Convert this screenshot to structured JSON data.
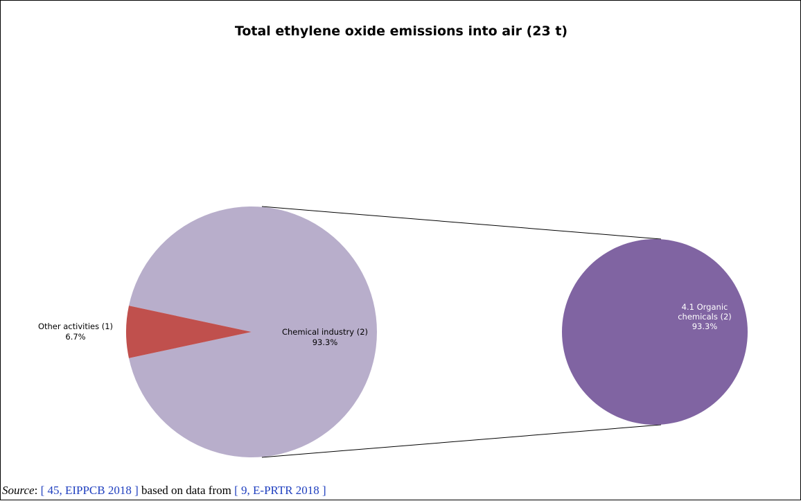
{
  "chart_data": {
    "type": "pie",
    "title": "Total ethylene oxide emissions into air (23 t)",
    "main_pie": {
      "slices": [
        {
          "label": "Other activities (1)",
          "value": 6.7,
          "display": "6.7%",
          "color": "#c0504d"
        },
        {
          "label": "Chemical industry (2)",
          "value": 93.3,
          "display": "93.3%",
          "color": "#b8aecb"
        }
      ]
    },
    "secondary_pie": {
      "slices": [
        {
          "label": "4.1  Organic chemicals (2)",
          "value": 93.3,
          "display": "93.3%",
          "color": "#8064a2"
        }
      ]
    },
    "breakdown_of": "Chemical industry (2)"
  },
  "caption": {
    "source_label": "Source",
    "separator": ": ",
    "ref1": "[ 45, EIPPCB 2018 ]",
    "middle": " based on data from ",
    "ref2": "[ 9, E-PRTR 2018 ]"
  }
}
